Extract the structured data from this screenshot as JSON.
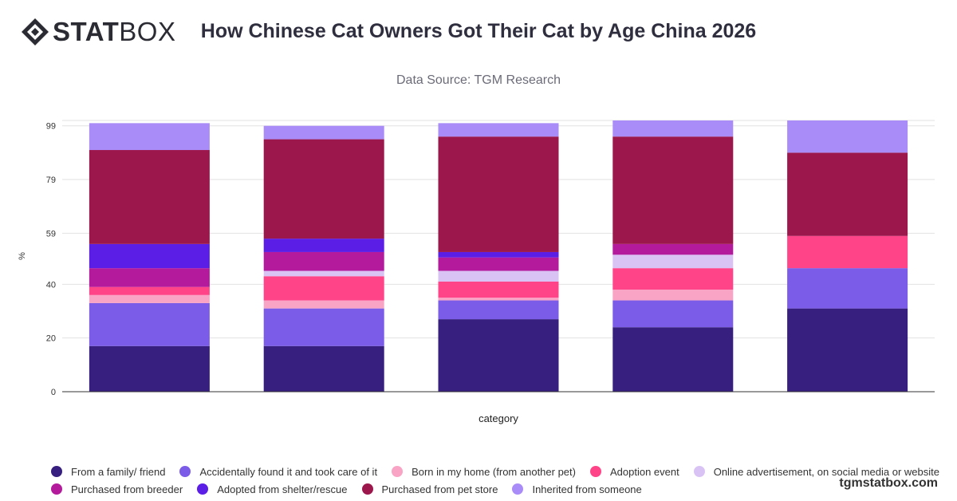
{
  "header": {
    "logo_bold": "STAT",
    "logo_light": "BOX",
    "title": "How Chinese Cat Owners Got Their Cat by Age China 2026",
    "subtitle": "Data Source: TGM Research"
  },
  "footer": {
    "watermark": "tgmstatbox.com"
  },
  "colors": {
    "From a family/ friend": "#361f7f",
    "Accidentally found it and took care of it": "#7b5ce8",
    "Born in my home (from another pet)": "#f9a4c5",
    "Adoption event": "#ff4488",
    "Online advertisement, on social media or website": "#d9c3f5",
    "Purchased from breeder": "#b31a9c",
    "Adopted from shelter/rescue": "#5a1ee6",
    "Purchased from pet store": "#9c174c",
    "Inherited from someone": "#a98cf7"
  },
  "chart_data": {
    "type": "bar",
    "stacked": true,
    "xlabel": "category",
    "ylabel": "%",
    "ylim": [
      0,
      101
    ],
    "yticks": [
      0,
      20,
      40,
      59,
      79,
      99
    ],
    "grid": true,
    "legend_position": "bottom",
    "categories": [
      "",
      "",
      "",
      "",
      ""
    ],
    "series": [
      {
        "name": "From a family/ friend",
        "values": [
          17,
          17,
          27,
          24,
          31
        ]
      },
      {
        "name": "Accidentally found it and took care of it",
        "values": [
          16,
          14,
          7,
          10,
          15
        ]
      },
      {
        "name": "Born in my home (from another pet)",
        "values": [
          3,
          3,
          1,
          4,
          0
        ]
      },
      {
        "name": "Adoption event",
        "values": [
          3,
          9,
          6,
          8,
          12
        ]
      },
      {
        "name": "Online advertisement, on social media or website",
        "values": [
          0,
          2,
          4,
          5,
          0
        ]
      },
      {
        "name": "Purchased from breeder",
        "values": [
          7,
          7,
          5,
          4,
          0
        ]
      },
      {
        "name": "Adopted from shelter/rescue",
        "values": [
          9,
          5,
          2,
          0,
          0
        ]
      },
      {
        "name": "Purchased from pet store",
        "values": [
          35,
          37,
          43,
          40,
          31
        ]
      },
      {
        "name": "Inherited from someone",
        "values": [
          10,
          5,
          5,
          6,
          12
        ]
      }
    ]
  }
}
